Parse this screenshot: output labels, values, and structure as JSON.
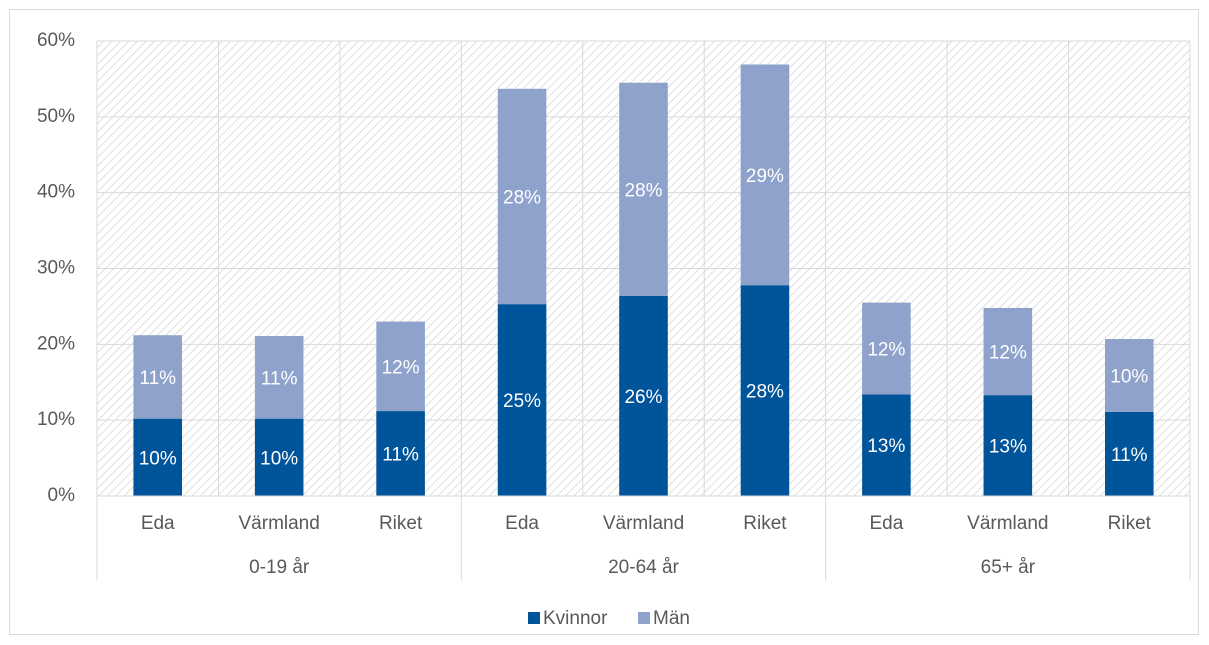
{
  "chart_data": {
    "type": "stacked_bar",
    "categories": [
      "Eda",
      "Värmland",
      "Riket",
      "Eda",
      "Värmland",
      "Riket",
      "Eda",
      "Värmland",
      "Riket"
    ],
    "groups": [
      "0-19 år",
      "20-64 år",
      "65+ år"
    ],
    "series": [
      {
        "name": "Kvinnor",
        "color": "#005499",
        "values": [
          10.2,
          10.2,
          11.2,
          25.3,
          26.4,
          27.8,
          13.4,
          13.3,
          11.1
        ],
        "value_labels": [
          "10%",
          "10%",
          "11%",
          "25%",
          "26%",
          "28%",
          "13%",
          "13%",
          "11%"
        ]
      },
      {
        "name": "Män",
        "color": "#8ea2cc",
        "values": [
          11.0,
          10.9,
          11.8,
          28.4,
          28.1,
          29.1,
          12.1,
          11.5,
          9.6
        ],
        "value_labels": [
          "11%",
          "11%",
          "12%",
          "28%",
          "28%",
          "29%",
          "12%",
          "12%",
          "10%"
        ]
      }
    ],
    "ylim": [
      0,
      60
    ],
    "yticks": [
      {
        "value": 0,
        "label": "0%"
      },
      {
        "value": 10,
        "label": "10%"
      },
      {
        "value": 20,
        "label": "20%"
      },
      {
        "value": 30,
        "label": "30%"
      },
      {
        "value": 40,
        "label": "40%"
      },
      {
        "value": 50,
        "label": "50%"
      },
      {
        "value": 60,
        "label": "60%"
      }
    ],
    "grid": true,
    "legend": "bottom"
  }
}
